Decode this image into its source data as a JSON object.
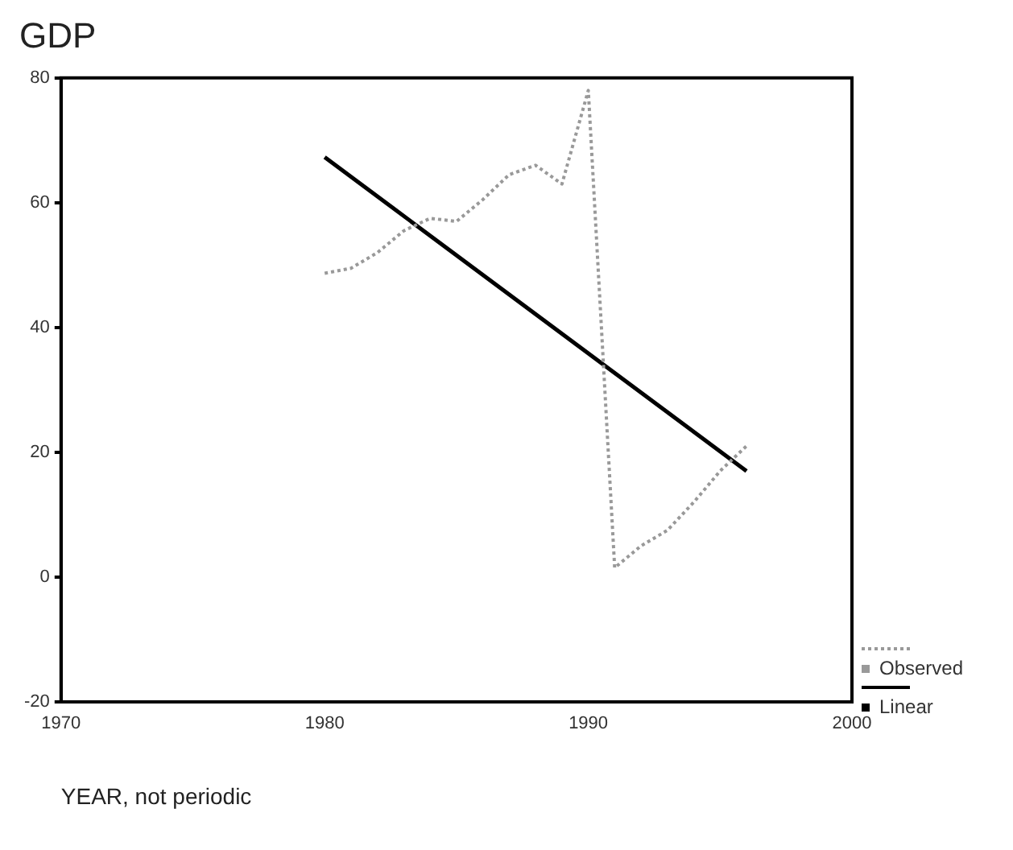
{
  "chart_data": {
    "type": "line",
    "title": "GDP",
    "xlabel": "YEAR, not periodic",
    "xlim": [
      1970,
      2000
    ],
    "xticks": [
      1970,
      1980,
      1990,
      2000
    ],
    "ylim": [
      -20,
      80
    ],
    "yticks": [
      -20,
      0,
      20,
      40,
      60,
      80
    ],
    "grid": false,
    "legend": "bottom right",
    "series": [
      {
        "name": "Observed",
        "color": "#999999",
        "line_style": "dotted",
        "x": [
          1980,
          1981,
          1982,
          1983,
          1984,
          1985,
          1986,
          1987,
          1988,
          1989,
          1990,
          1991,
          1992,
          1993,
          1994,
          1995,
          1996
        ],
        "values": [
          48.7,
          49.5,
          52,
          55.5,
          57.5,
          57,
          60.5,
          64.5,
          66,
          63,
          78,
          1.5,
          5,
          7.5,
          12,
          17,
          21
        ]
      },
      {
        "name": "Linear",
        "color": "#000000",
        "line_style": "solid",
        "x": [
          1980,
          1996
        ],
        "values": [
          67.3,
          17
        ]
      }
    ]
  }
}
